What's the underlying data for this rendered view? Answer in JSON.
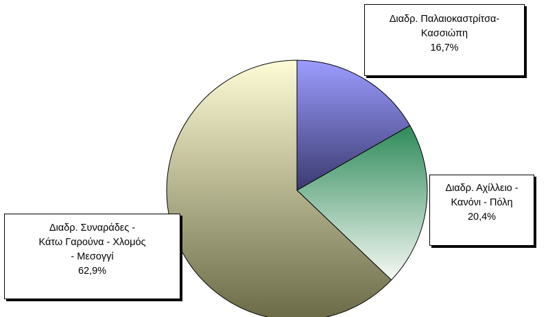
{
  "chart_data": {
    "type": "pie",
    "title": "",
    "slices": [
      {
        "name_lines": [
          "Διαδρ. Παλαιοκαστρίτσα-",
          "Κασσιώπη"
        ],
        "value": 16.7,
        "value_label": "16,7%",
        "colors": [
          "#9c9cff",
          "#3a3a70"
        ]
      },
      {
        "name_lines": [
          "Διαδρ. Αχίλλειο -",
          "Κανόνι - Πόλη"
        ],
        "value": 20.4,
        "value_label": "20,4%",
        "colors": [
          "#2e8a5a",
          "#f6f9f4"
        ]
      },
      {
        "name_lines": [
          "Διαδρ. Συναράδες -",
          "Κάτω Γαρούνα - Χλομός",
          "- Μεσογγί"
        ],
        "value": 62.9,
        "value_label": "62,9%",
        "colors": [
          "#fdfcd6",
          "#6b6a47"
        ]
      }
    ],
    "legend": "none",
    "data_labels": "category name and percentage in boxes"
  }
}
